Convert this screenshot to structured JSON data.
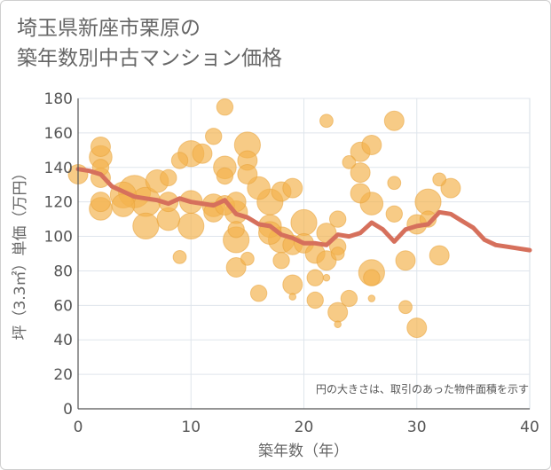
{
  "title": "埼玉県新座市栗原の\n築年数別中古マンション価格",
  "chart_data": {
    "type": "scatter",
    "xlabel": "築年数（年）",
    "ylabel": "坪（3.3㎡）単価（万円）",
    "xlim": [
      0,
      40
    ],
    "ylim": [
      0,
      180
    ],
    "xticks": [
      0,
      10,
      20,
      30,
      40
    ],
    "yticks": [
      0,
      20,
      40,
      60,
      80,
      100,
      120,
      140,
      160,
      180
    ],
    "grid": true,
    "note": "円の大きさは、取引のあった物件面積を示す",
    "colors": {
      "bubble": "#f3b24d",
      "line": "#d6705c"
    },
    "series": [
      {
        "kind": "bubble",
        "points": [
          {
            "x": 0,
            "y": 136,
            "s": 5
          },
          {
            "x": 2,
            "y": 152,
            "s": 5
          },
          {
            "x": 2,
            "y": 146,
            "s": 6
          },
          {
            "x": 2,
            "y": 140,
            "s": 4
          },
          {
            "x": 2,
            "y": 134,
            "s": 5
          },
          {
            "x": 2,
            "y": 120,
            "s": 5
          },
          {
            "x": 2,
            "y": 116,
            "s": 6
          },
          {
            "x": 4,
            "y": 124,
            "s": 7
          },
          {
            "x": 4,
            "y": 118,
            "s": 6
          },
          {
            "x": 5,
            "y": 126,
            "s": 9
          },
          {
            "x": 6,
            "y": 120,
            "s": 8
          },
          {
            "x": 6,
            "y": 106,
            "s": 7
          },
          {
            "x": 7,
            "y": 132,
            "s": 6
          },
          {
            "x": 8,
            "y": 134,
            "s": 4
          },
          {
            "x": 8,
            "y": 120,
            "s": 5
          },
          {
            "x": 8,
            "y": 110,
            "s": 6
          },
          {
            "x": 9,
            "y": 144,
            "s": 4
          },
          {
            "x": 9,
            "y": 88,
            "s": 3
          },
          {
            "x": 10,
            "y": 148,
            "s": 7
          },
          {
            "x": 10,
            "y": 120,
            "s": 6
          },
          {
            "x": 10,
            "y": 106,
            "s": 7
          },
          {
            "x": 11,
            "y": 148,
            "s": 5
          },
          {
            "x": 12,
            "y": 158,
            "s": 4
          },
          {
            "x": 12,
            "y": 118,
            "s": 6
          },
          {
            "x": 12,
            "y": 114,
            "s": 5
          },
          {
            "x": 13,
            "y": 175,
            "s": 4
          },
          {
            "x": 13,
            "y": 140,
            "s": 6
          },
          {
            "x": 13,
            "y": 135,
            "s": 4
          },
          {
            "x": 13,
            "y": 118,
            "s": 5
          },
          {
            "x": 14,
            "y": 120,
            "s": 5
          },
          {
            "x": 14,
            "y": 114,
            "s": 6
          },
          {
            "x": 14,
            "y": 104,
            "s": 4
          },
          {
            "x": 14,
            "y": 98,
            "s": 7
          },
          {
            "x": 14,
            "y": 82,
            "s": 5
          },
          {
            "x": 15,
            "y": 153,
            "s": 7
          },
          {
            "x": 15,
            "y": 144,
            "s": 5
          },
          {
            "x": 15,
            "y": 136,
            "s": 5
          },
          {
            "x": 15,
            "y": 87,
            "s": 3
          },
          {
            "x": 16,
            "y": 128,
            "s": 6
          },
          {
            "x": 16,
            "y": 67,
            "s": 4
          },
          {
            "x": 17,
            "y": 120,
            "s": 7
          },
          {
            "x": 17,
            "y": 106,
            "s": 6
          },
          {
            "x": 17,
            "y": 102,
            "s": 6
          },
          {
            "x": 18,
            "y": 126,
            "s": 5
          },
          {
            "x": 18,
            "y": 98,
            "s": 7
          },
          {
            "x": 18,
            "y": 86,
            "s": 4
          },
          {
            "x": 19,
            "y": 128,
            "s": 5
          },
          {
            "x": 19,
            "y": 95,
            "s": 5
          },
          {
            "x": 19,
            "y": 72,
            "s": 5
          },
          {
            "x": 19,
            "y": 65,
            "s": 1
          },
          {
            "x": 20,
            "y": 108,
            "s": 7
          },
          {
            "x": 20,
            "y": 96,
            "s": 5
          },
          {
            "x": 21,
            "y": 90,
            "s": 5
          },
          {
            "x": 21,
            "y": 76,
            "s": 4
          },
          {
            "x": 21,
            "y": 63,
            "s": 4
          },
          {
            "x": 22,
            "y": 167,
            "s": 3
          },
          {
            "x": 22,
            "y": 102,
            "s": 5
          },
          {
            "x": 22,
            "y": 86,
            "s": 5
          },
          {
            "x": 22,
            "y": 76,
            "s": 1
          },
          {
            "x": 23,
            "y": 110,
            "s": 4
          },
          {
            "x": 23,
            "y": 94,
            "s": 4
          },
          {
            "x": 23,
            "y": 90,
            "s": 3
          },
          {
            "x": 23,
            "y": 56,
            "s": 5
          },
          {
            "x": 23,
            "y": 49,
            "s": 1
          },
          {
            "x": 24,
            "y": 143,
            "s": 3
          },
          {
            "x": 24,
            "y": 64,
            "s": 4
          },
          {
            "x": 25,
            "y": 149,
            "s": 5
          },
          {
            "x": 25,
            "y": 137,
            "s": 5
          },
          {
            "x": 25,
            "y": 125,
            "s": 5
          },
          {
            "x": 26,
            "y": 153,
            "s": 5
          },
          {
            "x": 26,
            "y": 119,
            "s": 6
          },
          {
            "x": 26,
            "y": 79,
            "s": 7
          },
          {
            "x": 26,
            "y": 76,
            "s": 4
          },
          {
            "x": 26,
            "y": 64,
            "s": 1
          },
          {
            "x": 28,
            "y": 167,
            "s": 5
          },
          {
            "x": 28,
            "y": 131,
            "s": 3
          },
          {
            "x": 28,
            "y": 113,
            "s": 4
          },
          {
            "x": 29,
            "y": 86,
            "s": 5
          },
          {
            "x": 29,
            "y": 59,
            "s": 3
          },
          {
            "x": 30,
            "y": 107,
            "s": 5
          },
          {
            "x": 30,
            "y": 47,
            "s": 5
          },
          {
            "x": 31,
            "y": 120,
            "s": 7
          },
          {
            "x": 31,
            "y": 110,
            "s": 4
          },
          {
            "x": 32,
            "y": 133,
            "s": 3
          },
          {
            "x": 32,
            "y": 89,
            "s": 5
          },
          {
            "x": 33,
            "y": 128,
            "s": 5
          }
        ]
      },
      {
        "kind": "line",
        "x": [
          0,
          1,
          2,
          3,
          4,
          5,
          6,
          7,
          8,
          9,
          10,
          11,
          12,
          13,
          14,
          15,
          16,
          17,
          18,
          19,
          20,
          21,
          22,
          23,
          24,
          25,
          26,
          27,
          28,
          29,
          30,
          31,
          32,
          33,
          34,
          35,
          36,
          37,
          38,
          39,
          40
        ],
        "values": [
          139,
          138,
          136,
          129,
          126,
          123,
          122,
          121,
          119,
          122,
          120,
          119,
          118,
          121,
          113,
          111,
          107,
          106,
          101,
          99,
          96,
          96,
          95,
          101,
          100,
          102,
          108,
          104,
          97,
          104,
          106,
          107,
          114,
          113,
          109,
          105,
          98,
          95,
          94,
          93,
          92
        ]
      }
    ]
  }
}
